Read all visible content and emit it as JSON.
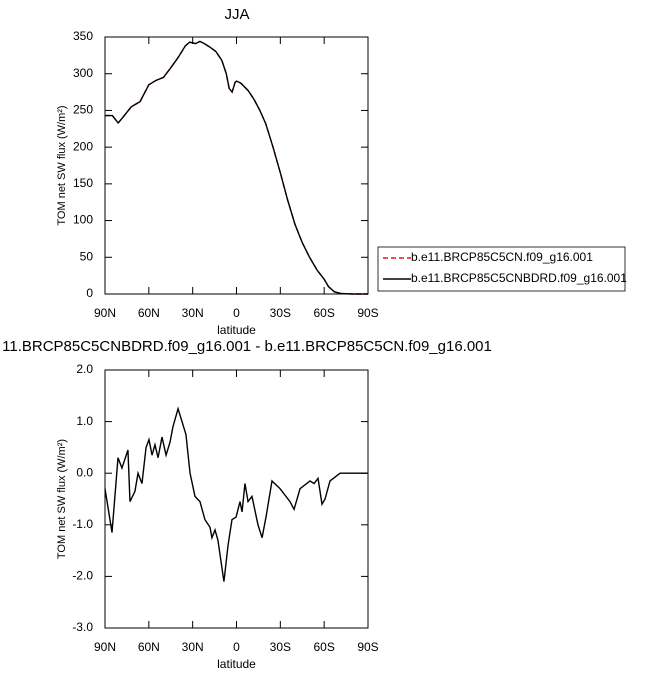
{
  "chart_data": [
    {
      "type": "line",
      "title": "JJA",
      "xlabel": "latitude",
      "ylabel": "TOM net SW flux (W/m²)",
      "x": [
        90,
        85,
        81,
        78,
        72,
        66,
        60,
        55,
        50,
        45,
        40,
        35,
        32,
        28,
        25,
        22,
        18,
        14,
        10,
        7,
        5,
        3,
        1,
        0,
        -3,
        -8,
        -12,
        -16,
        -20,
        -25,
        -30,
        -35,
        -40,
        -45,
        -50,
        -55,
        -60,
        -63,
        -67,
        -72,
        -80,
        -90
      ],
      "series": [
        {
          "name": "b.e11.BRCP85C5CN.f09_g16.001",
          "color": "#e41a1c",
          "dash": true,
          "values": [
            243,
            243,
            233,
            240,
            255,
            262,
            285,
            291,
            295,
            308,
            322,
            338,
            343,
            341,
            344,
            341,
            336,
            330,
            318,
            300,
            280,
            275,
            288,
            290,
            287,
            277,
            265,
            250,
            232,
            200,
            165,
            128,
            95,
            70,
            50,
            33,
            20,
            10,
            3,
            0.5,
            0,
            0
          ]
        },
        {
          "name": "b.e11.BRCP85C5CNBDRD.f09_g16.001",
          "color": "#000000",
          "dash": false,
          "values": [
            243,
            243,
            233,
            240,
            255,
            262,
            285,
            291,
            295,
            308,
            322,
            338,
            343,
            341,
            344,
            341,
            336,
            330,
            318,
            300,
            280,
            275,
            288,
            290,
            287,
            277,
            265,
            250,
            232,
            200,
            165,
            128,
            95,
            70,
            50,
            33,
            20,
            10,
            3,
            0.5,
            0,
            0
          ]
        }
      ],
      "xlim": [
        90,
        -90
      ],
      "xticks": [
        {
          "value": 90,
          "label": "90N"
        },
        {
          "value": 60,
          "label": "60N"
        },
        {
          "value": 30,
          "label": "30N"
        },
        0,
        {
          "value": -30,
          "label": "30S"
        },
        {
          "value": -60,
          "label": "60S"
        },
        {
          "value": -90,
          "label": "90S"
        }
      ],
      "ylim": [
        0,
        350
      ],
      "yticks": [
        0,
        50,
        100,
        150,
        200,
        250,
        300,
        350
      ]
    },
    {
      "type": "line",
      "title": "11.BRCP85C5CNBDRD.f09_g16.001 - b.e11.BRCP85C5CN.f09_g16.001",
      "xlabel": "latitude",
      "ylabel": "TOM net SW flux (W/m²)",
      "x": [
        90,
        85.2,
        81.1,
        78.4,
        74.3,
        72.9,
        69.5,
        67.4,
        64.7,
        61.9,
        59.9,
        57.8,
        55.8,
        53.7,
        51.0,
        48.2,
        45.5,
        43.5,
        40.0,
        37.3,
        34.6,
        31.8,
        28.4,
        25.0,
        21.6,
        18.1,
        16.8,
        14.7,
        12.7,
        8.6,
        5.8,
        3.1,
        0.3,
        -2.4,
        -3.8,
        -5.8,
        -7.9,
        -10.6,
        -14.7,
        -17.5,
        -20.2,
        -24.3,
        -29.8,
        -36.6,
        -39.4,
        -43.5,
        -50.3,
        -53.1,
        -55.8,
        -58.5,
        -60.6,
        -64.0,
        -70.9,
        -90
      ],
      "series": [
        {
          "color": "#000000",
          "values": [
            -0.3,
            -1.15,
            0.3,
            0.1,
            0.45,
            -0.55,
            -0.35,
            0.0,
            -0.2,
            0.5,
            0.65,
            0.35,
            0.55,
            0.3,
            0.7,
            0.35,
            0.6,
            0.9,
            1.25,
            1.0,
            0.75,
            0.0,
            -0.45,
            -0.55,
            -0.9,
            -1.05,
            -1.25,
            -1.1,
            -1.3,
            -2.1,
            -1.4,
            -0.9,
            -0.85,
            -0.55,
            -0.75,
            -0.2,
            -0.55,
            -0.45,
            -1.0,
            -1.25,
            -0.85,
            -0.15,
            -0.3,
            -0.55,
            -0.7,
            -0.3,
            -0.15,
            -0.2,
            -0.1,
            -0.6,
            -0.5,
            -0.15,
            0.0,
            0.0
          ]
        }
      ],
      "xlim": [
        90,
        -90
      ],
      "xticks": [
        {
          "value": 90,
          "label": "90N"
        },
        {
          "value": 60,
          "label": "60N"
        },
        {
          "value": 30,
          "label": "30N"
        },
        0,
        {
          "value": -30,
          "label": "30S"
        },
        {
          "value": -60,
          "label": "60S"
        },
        {
          "value": -90,
          "label": "90S"
        }
      ],
      "ylim": [
        -3,
        2
      ],
      "yticks": [
        {
          "value": -3,
          "label": "-3.0"
        },
        {
          "value": -2,
          "label": "-2.0"
        },
        {
          "value": -1,
          "label": "-1.0"
        },
        {
          "value": 0,
          "label": "0.0"
        },
        {
          "value": 1,
          "label": "1.0"
        },
        {
          "value": 2,
          "label": "2.0"
        }
      ]
    }
  ]
}
